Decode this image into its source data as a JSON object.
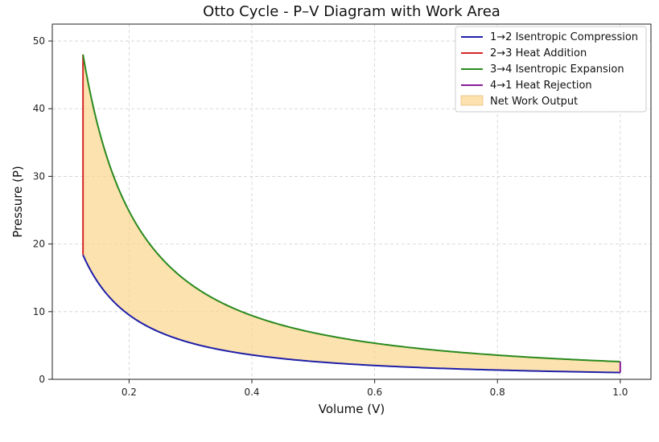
{
  "chart_data": {
    "type": "area",
    "title": "Otto Cycle - P–V Diagram with Work Area",
    "xlabel": "Volume (V)",
    "ylabel": "Pressure (P)",
    "xlim": [
      0.075,
      1.05
    ],
    "ylim": [
      0,
      52.5
    ],
    "xticks": [
      0.2,
      0.4,
      0.6,
      0.8,
      1.0
    ],
    "xtick_labels": [
      "0.2",
      "0.4",
      "0.6",
      "0.8",
      "1.0"
    ],
    "yticks": [
      0,
      10,
      20,
      30,
      40,
      50
    ],
    "ytick_labels": [
      "0",
      "10",
      "20",
      "30",
      "40",
      "50"
    ],
    "grid": true,
    "legend_position": "top-right",
    "cycle": {
      "gamma": 1.4,
      "V1": 1.0,
      "V2": 0.125,
      "P1": 1.0,
      "P3": 48.0
    },
    "series": [
      {
        "name": "1→2 Isentropic Compression",
        "color": "#1f1fa8",
        "x": [
          1.0,
          0.125
        ],
        "y": [
          1.0,
          18.4
        ]
      },
      {
        "name": "2→3 Heat Addition",
        "color": "#d62728",
        "x": [
          0.125,
          0.125
        ],
        "y": [
          18.4,
          48.0
        ]
      },
      {
        "name": "3→4 Isentropic Expansion",
        "color": "#2a8a1e",
        "x": [
          0.125,
          1.0
        ],
        "y": [
          48.0,
          2.6
        ]
      },
      {
        "name": "4→1 Heat Rejection",
        "color": "#8b1a9b",
        "x": [
          1.0,
          1.0
        ],
        "y": [
          2.6,
          1.0
        ]
      }
    ],
    "area": {
      "name": "Net Work Output",
      "color": "#fbd68c",
      "opacity": 0.7
    }
  }
}
